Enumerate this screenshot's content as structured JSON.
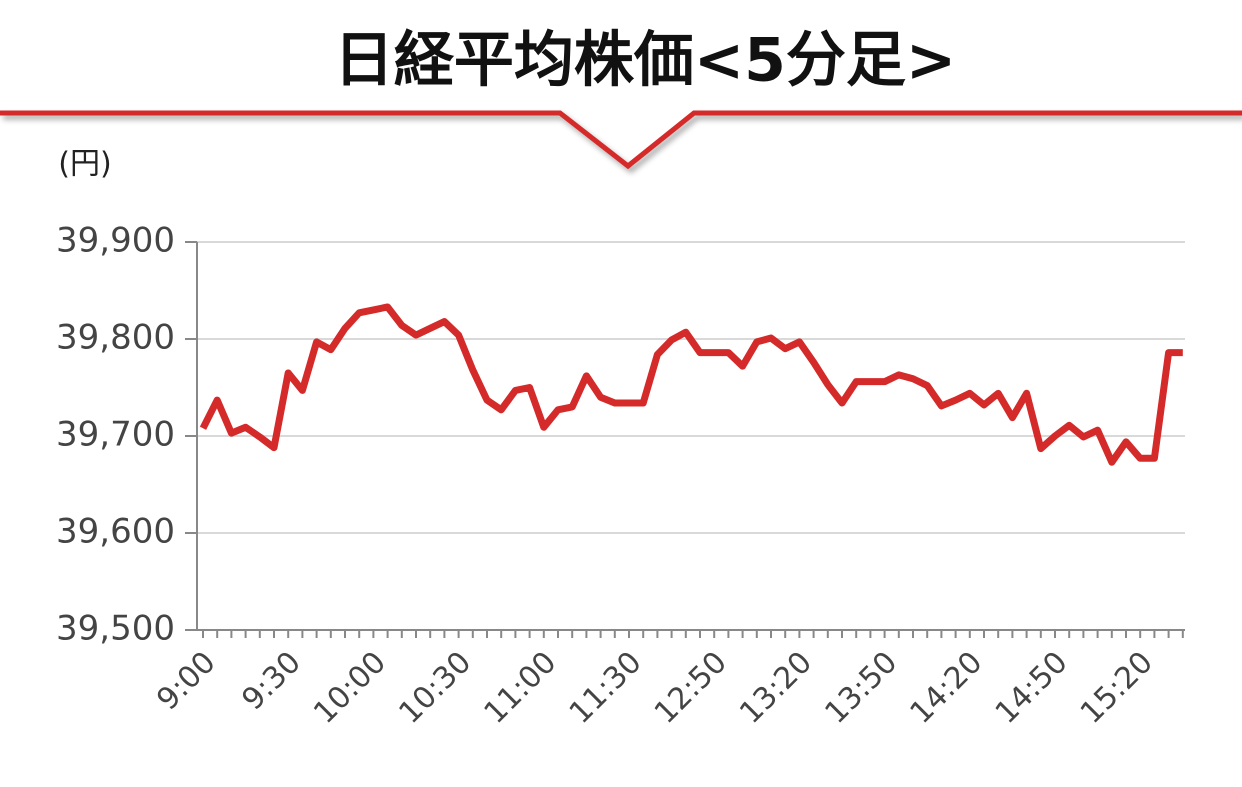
{
  "chart_data": {
    "type": "line",
    "title": "日経平均株価<5分足>",
    "y_label": "(円)",
    "categories": [
      "9:00",
      null,
      null,
      null,
      null,
      null,
      "9:30",
      null,
      null,
      null,
      null,
      null,
      "10:00",
      null,
      null,
      null,
      null,
      null,
      "10:30",
      null,
      null,
      null,
      null,
      null,
      "11:00",
      null,
      null,
      null,
      null,
      null,
      "11:30",
      null,
      null,
      null,
      null,
      null,
      "12:50",
      null,
      null,
      null,
      null,
      null,
      "13:20",
      null,
      null,
      null,
      null,
      null,
      "13:50",
      null,
      null,
      null,
      null,
      null,
      "14:20",
      null,
      null,
      null,
      null,
      null,
      "14:50",
      null,
      null,
      null,
      null,
      null,
      "15:20",
      null,
      null,
      null
    ],
    "series": [
      {
        "name": "日経平均株価",
        "color": "#d42a2a",
        "values": [
          39708,
          39737,
          39703,
          39709,
          39699,
          39688,
          39765,
          39747,
          39797,
          39789,
          39811,
          39827,
          39830,
          39833,
          39814,
          39804,
          39811,
          39818,
          39804,
          39768,
          39737,
          39727,
          39747,
          39750,
          39709,
          39727,
          39730,
          39762,
          39740,
          39734,
          39734,
          39734,
          39784,
          39799,
          39807,
          39786,
          39786,
          39786,
          39772,
          39797,
          39801,
          39790,
          39797,
          39776,
          39753,
          39734,
          39756,
          39756,
          39756,
          39763,
          39759,
          39752,
          39731,
          39737,
          39744,
          39732,
          39744,
          39719,
          39744,
          39687,
          39700,
          39711,
          39699,
          39706,
          39673,
          39694,
          39677,
          39677,
          39786,
          39786
        ]
      }
    ],
    "ylim": [
      39500,
      39900
    ],
    "yticks": [
      {
        "value": 39500,
        "label": "39,500"
      },
      {
        "value": 39600,
        "label": "39,600"
      },
      {
        "value": 39700,
        "label": "39,700"
      },
      {
        "value": 39800,
        "label": "39,800"
      },
      {
        "value": 39900,
        "label": "39,900"
      }
    ],
    "grid": true
  }
}
